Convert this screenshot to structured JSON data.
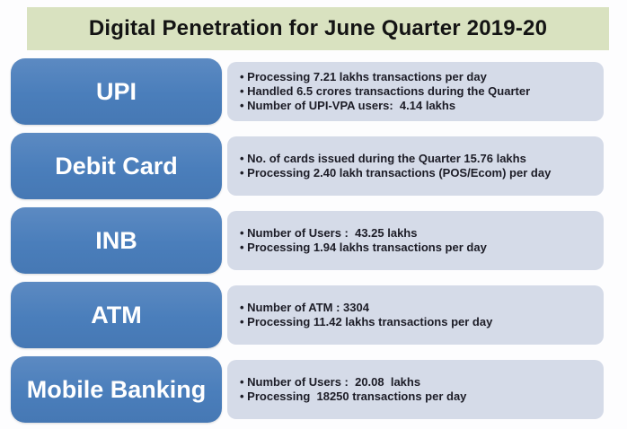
{
  "title": "Digital Penetration for June Quarter 2019-20",
  "colors": {
    "title_bg": "#d9e2c0",
    "box_blue": "#4a7ebb",
    "panel_bg": "#d5dbe8",
    "box_text": "#ffffff",
    "bullet_text": "#1c1c26"
  },
  "rows": [
    {
      "label": "UPI",
      "bullets": [
        "Processing 7.21 lakhs transactions per day",
        "Handled 6.5 crores transactions during the Quarter",
        "Number of UPI-VPA users:  4.14 lakhs"
      ]
    },
    {
      "label": "Debit Card",
      "bullets": [
        "No. of cards issued during the Quarter 15.76 lakhs",
        "Processing 2.40 lakh transactions (POS/Ecom) per day"
      ]
    },
    {
      "label": "INB",
      "bullets": [
        "Number of Users :  43.25 lakhs",
        "Processing 1.94 lakhs transactions per day"
      ]
    },
    {
      "label": "ATM",
      "bullets": [
        "Number of ATM : 3304",
        "Processing 11.42 lakhs transactions per day"
      ]
    },
    {
      "label": "Mobile Banking",
      "bullets": [
        "Number of Users :  20.08  lakhs",
        "Processing  18250 transactions per day"
      ]
    }
  ]
}
